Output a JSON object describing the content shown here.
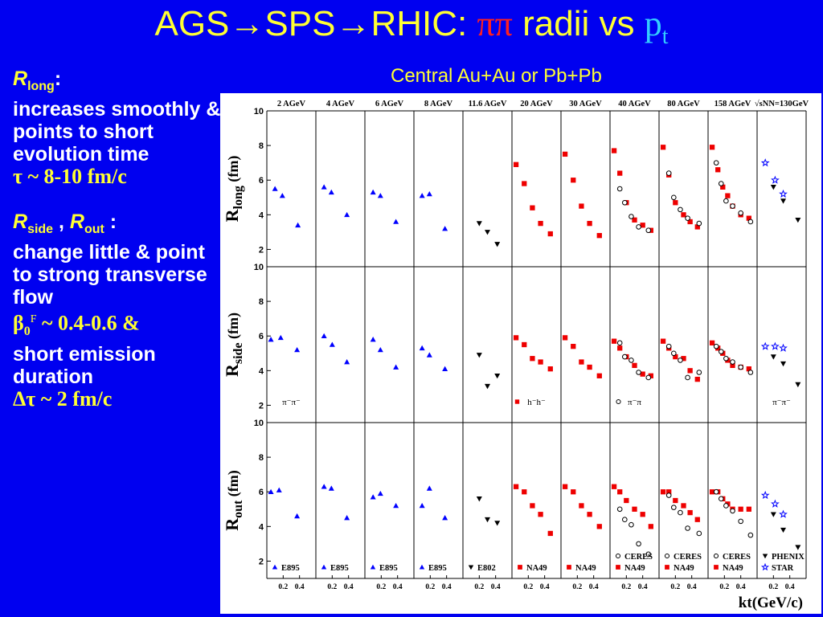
{
  "slide": {
    "title_prefix": "AGS→SPS→RHIC: ",
    "title_pipi": "ππ",
    "title_mid": " radii vs ",
    "title_p": "p",
    "title_sub": "t",
    "subtitle": "Central Au+Au or Pb+Pb",
    "left": {
      "rlong_R": "R",
      "rlong_sub": "long",
      "rlong_colon": ":",
      "rlong_text": "increases smoothly & points to short evolution time",
      "tau": "τ ~ 8-10 fm/c",
      "rside_R": "R",
      "rside_sub": "side",
      "sep": " , ",
      "rout_R": "R",
      "rout_sub": "out",
      "rs_colon": " :",
      "rs_text": "change little & point to strong transverse flow",
      "beta_b": "β",
      "beta_sub": "0",
      "beta_sup": "F",
      "beta_rest": " ~ 0.4-0.6 &",
      "emit_text": "short emission duration",
      "dtau": "Δτ ~ 2 fm/c"
    }
  },
  "chart_data": {
    "type": "scatter",
    "xlabel": "kt(GeV/c)",
    "y_ticks": [
      "2",
      "4",
      "6",
      "8",
      "10"
    ],
    "x_ticks": [
      "0.2",
      "0.4"
    ],
    "ylim": [
      1,
      10
    ],
    "xlim": [
      0,
      0.6
    ],
    "energies": [
      "2 AGeV",
      "4 AGeV",
      "6 AGeV",
      "8 AGeV",
      "11.6 AGeV",
      "20 AGeV",
      "30 AGeV",
      "40 AGeV",
      "80 AGeV",
      "158 AGeV",
      "√sNN=130GeV"
    ],
    "rows": [
      {
        "ylabel_R": "R",
        "ylabel_sub": "long",
        "ylabel_unit": " (fm)"
      },
      {
        "ylabel_R": "R",
        "ylabel_sub": "side",
        "ylabel_unit": " (fm)"
      },
      {
        "ylabel_R": "R",
        "ylabel_sub": "out",
        "ylabel_unit": " (fm)"
      }
    ],
    "row_labels": [
      {
        "row": 1,
        "col": 0,
        "text": "π⁻π⁻"
      },
      {
        "row": 1,
        "col": 5,
        "text": "h⁻h⁻"
      },
      {
        "row": 1,
        "col": 7,
        "text": "π⁻π"
      },
      {
        "row": 1,
        "col": 10,
        "text": "π⁻π⁻"
      }
    ],
    "legend_items": [
      {
        "col": 0,
        "marker": "blue-triangle",
        "text": "E895"
      },
      {
        "col": 1,
        "marker": "blue-triangle",
        "text": "E895"
      },
      {
        "col": 2,
        "marker": "blue-triangle",
        "text": "E895"
      },
      {
        "col": 3,
        "marker": "blue-triangle",
        "text": "E895"
      },
      {
        "col": 4,
        "marker": "black-triangle-down",
        "text": "E802"
      },
      {
        "col": 5,
        "marker": "red-square",
        "text": "NA49"
      },
      {
        "col": 6,
        "marker": "red-square",
        "text": "NA49"
      },
      {
        "col": 7,
        "marker": "open-circle",
        "text": "CERES"
      },
      {
        "col": 7,
        "marker": "red-square",
        "text": "NA49"
      },
      {
        "col": 8,
        "marker": "open-circle",
        "text": "CERES"
      },
      {
        "col": 8,
        "marker": "red-square",
        "text": "NA49"
      },
      {
        "col": 9,
        "marker": "open-circle",
        "text": "CERES"
      },
      {
        "col": 9,
        "marker": "red-square",
        "text": "NA49"
      },
      {
        "col": 10,
        "marker": "black-triangle-down",
        "text": "PHENIX"
      },
      {
        "col": 10,
        "marker": "blue-star",
        "text": "STAR"
      }
    ],
    "colors": {
      "blue": "#0000ff",
      "red": "#ee0000",
      "black": "#000000"
    },
    "series": [
      {
        "row": 0,
        "col": 0,
        "marker": "blue-triangle",
        "x": [
          0.1,
          0.19,
          0.38
        ],
        "y": [
          5.5,
          5.1,
          3.4
        ]
      },
      {
        "row": 0,
        "col": 1,
        "marker": "blue-triangle",
        "x": [
          0.1,
          0.19,
          0.38
        ],
        "y": [
          5.6,
          5.3,
          4.0
        ]
      },
      {
        "row": 0,
        "col": 2,
        "marker": "blue-triangle",
        "x": [
          0.1,
          0.19,
          0.38
        ],
        "y": [
          5.3,
          5.1,
          3.6
        ]
      },
      {
        "row": 0,
        "col": 3,
        "marker": "blue-triangle",
        "x": [
          0.1,
          0.19,
          0.38
        ],
        "y": [
          5.1,
          5.2,
          3.2
        ]
      },
      {
        "row": 0,
        "col": 4,
        "marker": "black-triangle-down",
        "x": [
          0.2,
          0.3,
          0.42
        ],
        "y": [
          3.5,
          3.0,
          2.3
        ]
      },
      {
        "row": 0,
        "col": 5,
        "marker": "red-square",
        "x": [
          0.05,
          0.15,
          0.25,
          0.35,
          0.47
        ],
        "y": [
          6.9,
          5.8,
          4.4,
          3.5,
          2.9
        ]
      },
      {
        "row": 0,
        "col": 6,
        "marker": "red-square",
        "x": [
          0.05,
          0.15,
          0.25,
          0.35,
          0.47
        ],
        "y": [
          7.5,
          6.0,
          4.5,
          3.5,
          2.8
        ]
      },
      {
        "row": 0,
        "col": 7,
        "marker": "red-square",
        "x": [
          0.05,
          0.12,
          0.2,
          0.3,
          0.4,
          0.5
        ],
        "y": [
          7.7,
          6.4,
          4.7,
          3.7,
          3.4,
          3.1
        ]
      },
      {
        "row": 0,
        "col": 7,
        "marker": "open-circle",
        "x": [
          0.12,
          0.18,
          0.26,
          0.35,
          0.47
        ],
        "y": [
          5.5,
          4.7,
          3.9,
          3.3,
          3.1
        ]
      },
      {
        "row": 0,
        "col": 8,
        "marker": "red-square",
        "x": [
          0.05,
          0.12,
          0.2,
          0.3,
          0.38,
          0.47
        ],
        "y": [
          7.9,
          6.3,
          4.7,
          4.0,
          3.6,
          3.3
        ]
      },
      {
        "row": 0,
        "col": 8,
        "marker": "open-circle",
        "x": [
          0.12,
          0.18,
          0.26,
          0.35,
          0.49
        ],
        "y": [
          6.4,
          5.0,
          4.3,
          3.8,
          3.5
        ]
      },
      {
        "row": 0,
        "col": 9,
        "marker": "red-square",
        "x": [
          0.05,
          0.12,
          0.18,
          0.24,
          0.3,
          0.4,
          0.5
        ],
        "y": [
          7.9,
          6.6,
          5.6,
          5.1,
          4.5,
          4.0,
          3.8
        ]
      },
      {
        "row": 0,
        "col": 9,
        "marker": "open-circle",
        "x": [
          0.1,
          0.16,
          0.22,
          0.3,
          0.4,
          0.52
        ],
        "y": [
          7.0,
          5.8,
          4.8,
          4.5,
          4.1,
          3.6
        ]
      },
      {
        "row": 0,
        "col": 10,
        "marker": "blue-star",
        "x": [
          0.1,
          0.22,
          0.32
        ],
        "y": [
          7.0,
          6.0,
          5.2
        ]
      },
      {
        "row": 0,
        "col": 10,
        "marker": "black-triangle-down",
        "x": [
          0.2,
          0.32,
          0.5
        ],
        "y": [
          5.6,
          4.8,
          3.7
        ]
      },
      {
        "row": 1,
        "col": 0,
        "marker": "blue-triangle",
        "x": [
          0.05,
          0.17,
          0.37
        ],
        "y": [
          5.8,
          5.9,
          5.2
        ]
      },
      {
        "row": 1,
        "col": 1,
        "marker": "blue-triangle",
        "x": [
          0.1,
          0.2,
          0.38
        ],
        "y": [
          6.0,
          5.5,
          4.5
        ]
      },
      {
        "row": 1,
        "col": 2,
        "marker": "blue-triangle",
        "x": [
          0.1,
          0.19,
          0.38
        ],
        "y": [
          5.8,
          5.2,
          4.2
        ]
      },
      {
        "row": 1,
        "col": 3,
        "marker": "blue-triangle",
        "x": [
          0.1,
          0.19,
          0.38
        ],
        "y": [
          5.3,
          4.9,
          4.1
        ]
      },
      {
        "row": 1,
        "col": 4,
        "marker": "black-triangle-down",
        "x": [
          0.2,
          0.3,
          0.42
        ],
        "y": [
          4.9,
          3.1,
          3.7
        ]
      },
      {
        "row": 1,
        "col": 5,
        "marker": "red-square",
        "x": [
          0.05,
          0.15,
          0.25,
          0.35,
          0.47
        ],
        "y": [
          5.9,
          5.5,
          4.7,
          4.5,
          4.1
        ]
      },
      {
        "row": 1,
        "col": 6,
        "marker": "red-square",
        "x": [
          0.05,
          0.15,
          0.25,
          0.35,
          0.47
        ],
        "y": [
          5.9,
          5.4,
          4.5,
          4.2,
          3.7
        ]
      },
      {
        "row": 1,
        "col": 7,
        "marker": "red-square",
        "x": [
          0.05,
          0.12,
          0.2,
          0.3,
          0.4,
          0.5
        ],
        "y": [
          5.7,
          5.3,
          4.8,
          4.3,
          3.8,
          3.7
        ]
      },
      {
        "row": 1,
        "col": 7,
        "marker": "open-circle",
        "x": [
          0.12,
          0.18,
          0.26,
          0.35,
          0.47
        ],
        "y": [
          5.6,
          4.8,
          4.6,
          3.9,
          3.6
        ]
      },
      {
        "row": 1,
        "col": 8,
        "marker": "red-square",
        "x": [
          0.05,
          0.12,
          0.2,
          0.3,
          0.38,
          0.47
        ],
        "y": [
          5.7,
          5.3,
          4.8,
          4.7,
          4.0,
          3.5
        ]
      },
      {
        "row": 1,
        "col": 8,
        "marker": "open-circle",
        "x": [
          0.12,
          0.18,
          0.26,
          0.35,
          0.49
        ],
        "y": [
          5.4,
          5.0,
          4.6,
          3.6,
          3.9
        ]
      },
      {
        "row": 1,
        "col": 9,
        "marker": "red-square",
        "x": [
          0.05,
          0.12,
          0.18,
          0.24,
          0.3,
          0.4,
          0.5
        ],
        "y": [
          5.6,
          5.3,
          5.0,
          4.6,
          4.3,
          4.2,
          4.1
        ]
      },
      {
        "row": 1,
        "col": 9,
        "marker": "open-circle",
        "x": [
          0.1,
          0.16,
          0.22,
          0.3,
          0.4,
          0.52
        ],
        "y": [
          5.4,
          5.1,
          4.7,
          4.5,
          4.2,
          3.9
        ]
      },
      {
        "row": 1,
        "col": 10,
        "marker": "blue-star",
        "x": [
          0.1,
          0.22,
          0.32
        ],
        "y": [
          5.4,
          5.4,
          5.3
        ]
      },
      {
        "row": 1,
        "col": 10,
        "marker": "black-triangle-down",
        "x": [
          0.2,
          0.32,
          0.5
        ],
        "y": [
          4.8,
          4.4,
          3.2
        ]
      },
      {
        "row": 2,
        "col": 0,
        "marker": "blue-triangle",
        "x": [
          0.05,
          0.15,
          0.37
        ],
        "y": [
          6.0,
          6.1,
          4.6
        ]
      },
      {
        "row": 2,
        "col": 1,
        "marker": "blue-triangle",
        "x": [
          0.1,
          0.19,
          0.38
        ],
        "y": [
          6.3,
          6.2,
          4.5
        ]
      },
      {
        "row": 2,
        "col": 2,
        "marker": "blue-triangle",
        "x": [
          0.1,
          0.19,
          0.38
        ],
        "y": [
          5.7,
          5.9,
          5.2
        ]
      },
      {
        "row": 2,
        "col": 3,
        "marker": "blue-triangle",
        "x": [
          0.1,
          0.19,
          0.38
        ],
        "y": [
          5.2,
          6.2,
          4.5
        ]
      },
      {
        "row": 2,
        "col": 4,
        "marker": "black-triangle-down",
        "x": [
          0.2,
          0.3,
          0.42
        ],
        "y": [
          5.6,
          4.4,
          4.2
        ]
      },
      {
        "row": 2,
        "col": 5,
        "marker": "red-square",
        "x": [
          0.05,
          0.15,
          0.25,
          0.35,
          0.47
        ],
        "y": [
          6.3,
          6.0,
          5.2,
          4.7,
          3.6
        ]
      },
      {
        "row": 2,
        "col": 6,
        "marker": "red-square",
        "x": [
          0.05,
          0.15,
          0.25,
          0.35,
          0.47
        ],
        "y": [
          6.3,
          6.0,
          5.2,
          4.7,
          4.0
        ]
      },
      {
        "row": 2,
        "col": 7,
        "marker": "red-square",
        "x": [
          0.05,
          0.12,
          0.2,
          0.3,
          0.4,
          0.5
        ],
        "y": [
          6.3,
          6.0,
          5.5,
          5.0,
          4.7,
          4.0
        ]
      },
      {
        "row": 2,
        "col": 7,
        "marker": "open-circle",
        "x": [
          0.12,
          0.18,
          0.26,
          0.35,
          0.47
        ],
        "y": [
          5.0,
          4.4,
          4.1,
          3.0,
          2.4
        ]
      },
      {
        "row": 2,
        "col": 8,
        "marker": "red-square",
        "x": [
          0.05,
          0.12,
          0.2,
          0.3,
          0.38,
          0.47
        ],
        "y": [
          6.0,
          6.0,
          5.5,
          5.2,
          4.8,
          4.4
        ]
      },
      {
        "row": 2,
        "col": 8,
        "marker": "open-circle",
        "x": [
          0.12,
          0.18,
          0.26,
          0.35,
          0.49
        ],
        "y": [
          5.8,
          5.1,
          4.8,
          3.9,
          3.6
        ]
      },
      {
        "row": 2,
        "col": 9,
        "marker": "red-square",
        "x": [
          0.05,
          0.12,
          0.18,
          0.24,
          0.3,
          0.4,
          0.5
        ],
        "y": [
          6.0,
          6.0,
          5.6,
          5.3,
          5.0,
          5.0,
          5.0
        ]
      },
      {
        "row": 2,
        "col": 9,
        "marker": "open-circle",
        "x": [
          0.1,
          0.16,
          0.22,
          0.3,
          0.4,
          0.52
        ],
        "y": [
          6.0,
          5.6,
          5.2,
          4.9,
          4.3,
          3.5
        ]
      },
      {
        "row": 2,
        "col": 10,
        "marker": "blue-star",
        "x": [
          0.1,
          0.22,
          0.32
        ],
        "y": [
          5.8,
          5.3,
          4.7
        ]
      },
      {
        "row": 2,
        "col": 10,
        "marker": "black-triangle-down",
        "x": [
          0.2,
          0.32,
          0.5
        ],
        "y": [
          4.7,
          3.8,
          2.8
        ]
      }
    ]
  }
}
